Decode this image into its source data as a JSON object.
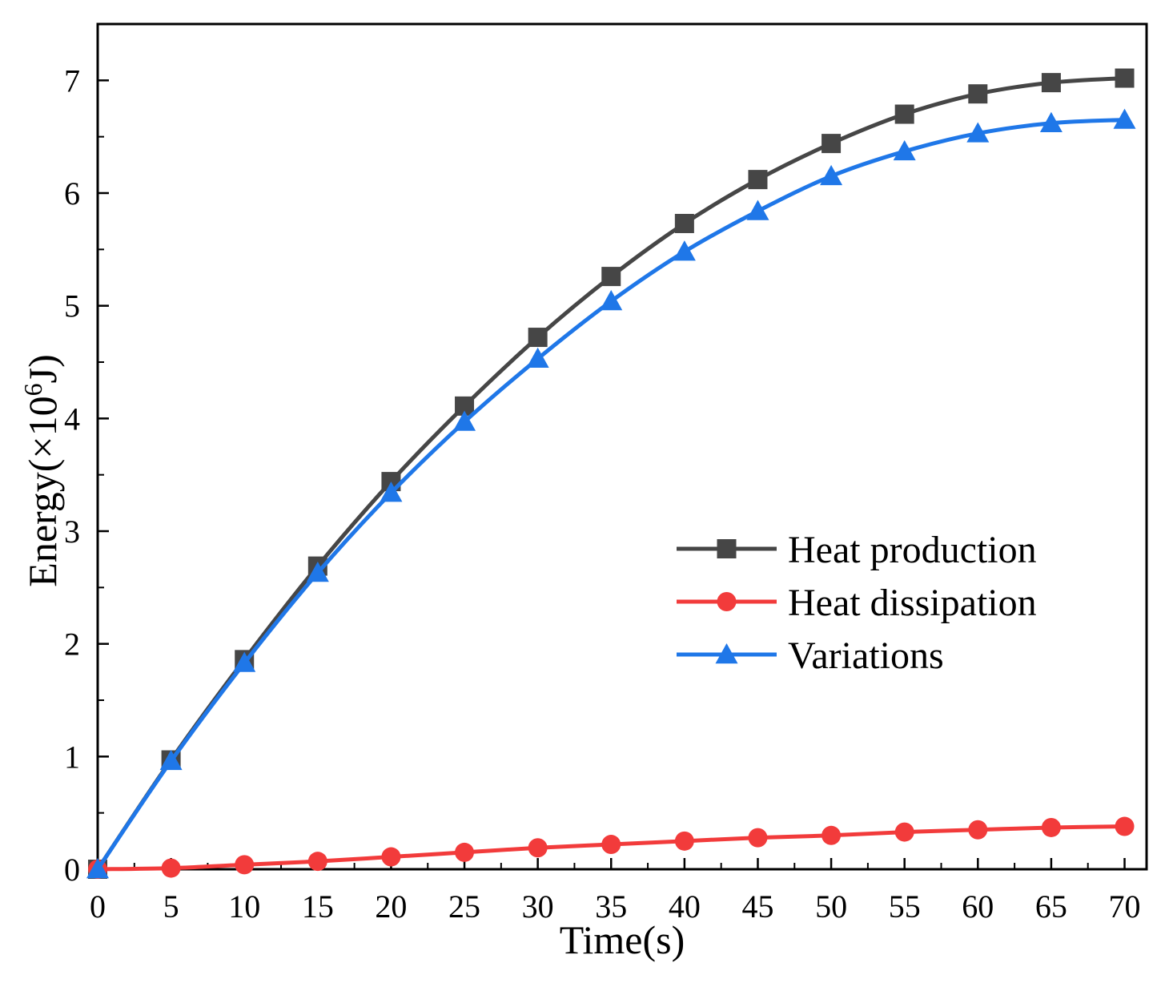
{
  "chart_data": {
    "type": "line",
    "title": "",
    "xlabel": "Time(s)",
    "ylabel": {
      "prefix": "Energy(×10",
      "exponent": "6",
      "suffix": "J)"
    },
    "xlim": [
      0,
      71.5
    ],
    "ylim": [
      0,
      7.5
    ],
    "x_ticks": [
      0,
      5,
      10,
      15,
      20,
      25,
      30,
      35,
      40,
      45,
      50,
      55,
      60,
      65,
      70
    ],
    "y_ticks": [
      0,
      1,
      2,
      3,
      4,
      5,
      6,
      7
    ],
    "x_minor_step": 2.5,
    "y_minor_step": 0.5,
    "legend_position": "center-right",
    "x": [
      0,
      5,
      10,
      15,
      20,
      25,
      30,
      35,
      40,
      45,
      50,
      55,
      60,
      65,
      70
    ],
    "series": [
      {
        "name": "Heat production",
        "color": "#464646",
        "marker": "square",
        "values": [
          0,
          0.97,
          1.86,
          2.69,
          3.44,
          4.11,
          4.72,
          5.26,
          5.73,
          6.12,
          6.44,
          6.7,
          6.88,
          6.98,
          7.02
        ]
      },
      {
        "name": "Heat dissipation",
        "color": "#f23b3b",
        "marker": "circle",
        "values": [
          0,
          0.01,
          0.04,
          0.07,
          0.11,
          0.15,
          0.19,
          0.22,
          0.25,
          0.28,
          0.3,
          0.33,
          0.35,
          0.37,
          0.38
        ]
      },
      {
        "name": "Variations",
        "color": "#1f77e8",
        "marker": "triangle",
        "values": [
          0,
          0.96,
          1.83,
          2.63,
          3.34,
          3.97,
          4.53,
          5.04,
          5.48,
          5.84,
          6.15,
          6.37,
          6.53,
          6.62,
          6.65
        ]
      }
    ]
  }
}
